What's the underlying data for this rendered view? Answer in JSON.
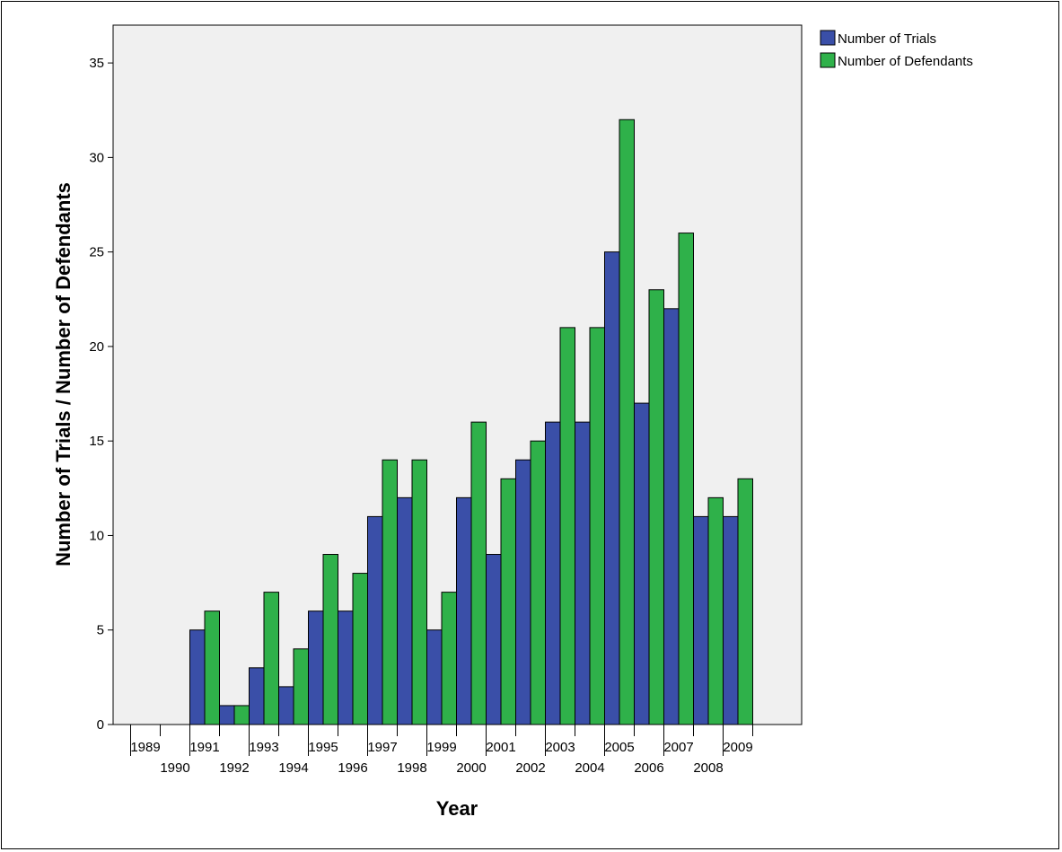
{
  "chart_data": {
    "type": "bar",
    "title": "",
    "xlabel": "Year",
    "ylabel": "Number of Trials / Number of Defendants",
    "ylim": [
      0,
      37
    ],
    "yticks": [
      0,
      5,
      10,
      15,
      20,
      25,
      30,
      35
    ],
    "categories": [
      "1989",
      "1990",
      "1991",
      "1992",
      "1993",
      "1994",
      "1995",
      "1996",
      "1997",
      "1998",
      "1999",
      "2000",
      "2001",
      "2002",
      "2003",
      "2004",
      "2005",
      "2006",
      "2007",
      "2008",
      "2009"
    ],
    "series": [
      {
        "name": "Number of Trials",
        "color": "#3a4fa8",
        "values": [
          0,
          0,
          5,
          1,
          3,
          2,
          6,
          6,
          11,
          12,
          5,
          12,
          9,
          14,
          16,
          16,
          25,
          17,
          22,
          11,
          11
        ]
      },
      {
        "name": "Number of Defendants",
        "color": "#2fb14a",
        "values": [
          0,
          0,
          6,
          1,
          7,
          4,
          9,
          8,
          14,
          14,
          7,
          16,
          13,
          15,
          21,
          21,
          32,
          23,
          26,
          12,
          13
        ]
      }
    ],
    "legend_position": "top-right",
    "plot_background": "#f0f0f0",
    "grid": false
  }
}
